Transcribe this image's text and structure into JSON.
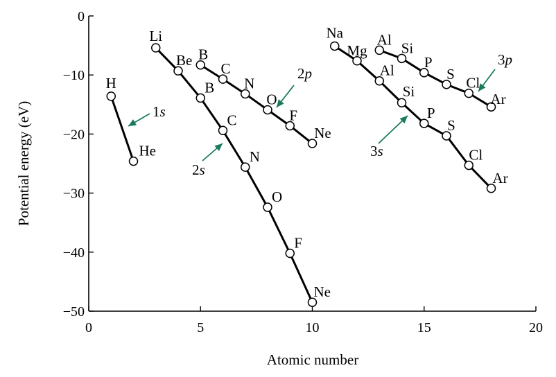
{
  "chart_data": {
    "type": "line",
    "title": "",
    "xlabel": "Atomic number",
    "ylabel": "Potential energy (eV)",
    "xlim": [
      0,
      20
    ],
    "ylim": [
      -50,
      0
    ],
    "xticks": [
      0,
      5,
      10,
      15,
      20
    ],
    "yticks": [
      0,
      -10,
      -20,
      -30,
      -40,
      -50
    ],
    "grid": false,
    "colors": {
      "line": "#000000",
      "marker_fill": "#ffffff",
      "annotation_arrow": "#1a7a5e"
    },
    "series": [
      {
        "key": "1s",
        "points": [
          {
            "x": 1,
            "y": -13.6,
            "label": "H"
          },
          {
            "x": 2,
            "y": -24.6,
            "label": "He"
          }
        ]
      },
      {
        "key": "2s",
        "points": [
          {
            "x": 3,
            "y": -5.4,
            "label": "Li"
          },
          {
            "x": 4,
            "y": -9.3,
            "label": "Be"
          },
          {
            "x": 5,
            "y": -13.9,
            "label": "B"
          },
          {
            "x": 6,
            "y": -19.4,
            "label": "C"
          },
          {
            "x": 7,
            "y": -25.6,
            "label": "N"
          },
          {
            "x": 8,
            "y": -32.4,
            "label": "O"
          },
          {
            "x": 9,
            "y": -40.2,
            "label": "F"
          },
          {
            "x": 10,
            "y": -48.5,
            "label": "Ne"
          }
        ]
      },
      {
        "key": "2p",
        "points": [
          {
            "x": 5,
            "y": -8.3,
            "label": "B"
          },
          {
            "x": 6,
            "y": -10.7,
            "label": "C"
          },
          {
            "x": 7,
            "y": -13.2,
            "label": "N"
          },
          {
            "x": 8,
            "y": -15.9,
            "label": "O"
          },
          {
            "x": 9,
            "y": -18.6,
            "label": "F"
          },
          {
            "x": 10,
            "y": -21.6,
            "label": "Ne"
          }
        ]
      },
      {
        "key": "3s",
        "points": [
          {
            "x": 11,
            "y": -5.1,
            "label": "Na"
          },
          {
            "x": 12,
            "y": -7.6,
            "label": "Mg"
          },
          {
            "x": 13,
            "y": -11.0,
            "label": "Al"
          },
          {
            "x": 14,
            "y": -14.7,
            "label": "Si"
          },
          {
            "x": 15,
            "y": -18.2,
            "label": "P"
          },
          {
            "x": 16,
            "y": -20.3,
            "label": "S"
          },
          {
            "x": 17,
            "y": -25.3,
            "label": "Cl"
          },
          {
            "x": 18,
            "y": -29.2,
            "label": "Ar"
          }
        ]
      },
      {
        "key": "3p",
        "points": [
          {
            "x": 13,
            "y": -5.8,
            "label": "Al"
          },
          {
            "x": 14,
            "y": -7.2,
            "label": "Si"
          },
          {
            "x": 15,
            "y": -9.6,
            "label": "P"
          },
          {
            "x": 16,
            "y": -11.6,
            "label": "S"
          },
          {
            "x": 17,
            "y": -13.1,
            "label": "Cl"
          },
          {
            "x": 18,
            "y": -15.4,
            "label": "Ar"
          }
        ]
      }
    ],
    "annotations": [
      {
        "base": "1",
        "italic": "s"
      },
      {
        "base": "2",
        "italic": "s"
      },
      {
        "base": "2",
        "italic": "p"
      },
      {
        "base": "3",
        "italic": "s"
      },
      {
        "base": "3",
        "italic": "p"
      }
    ]
  }
}
